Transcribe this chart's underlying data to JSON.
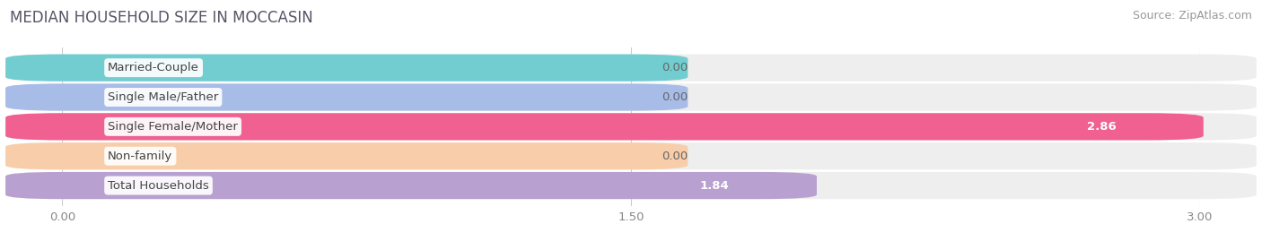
{
  "title": "MEDIAN HOUSEHOLD SIZE IN MOCCASIN",
  "source": "Source: ZipAtlas.com",
  "categories": [
    "Married-Couple",
    "Single Male/Father",
    "Single Female/Mother",
    "Non-family",
    "Total Households"
  ],
  "values": [
    0.0,
    0.0,
    2.86,
    0.0,
    1.84
  ],
  "bar_colors": [
    "#72cdd0",
    "#a8bce8",
    "#f06090",
    "#f8ceaa",
    "#b8a0d0"
  ],
  "xlim": [
    0,
    3.0
  ],
  "xticks": [
    0.0,
    1.5,
    3.0
  ],
  "xtick_labels": [
    "0.00",
    "1.50",
    "3.00"
  ],
  "title_fontsize": 12,
  "source_fontsize": 9,
  "label_fontsize": 9.5,
  "value_fontsize": 9.5,
  "bg_color": "#ffffff",
  "bar_height": 0.62,
  "bar_bg_color": "#eeeeee",
  "min_bar_display": 1.5,
  "bar_rounding": 0.15
}
